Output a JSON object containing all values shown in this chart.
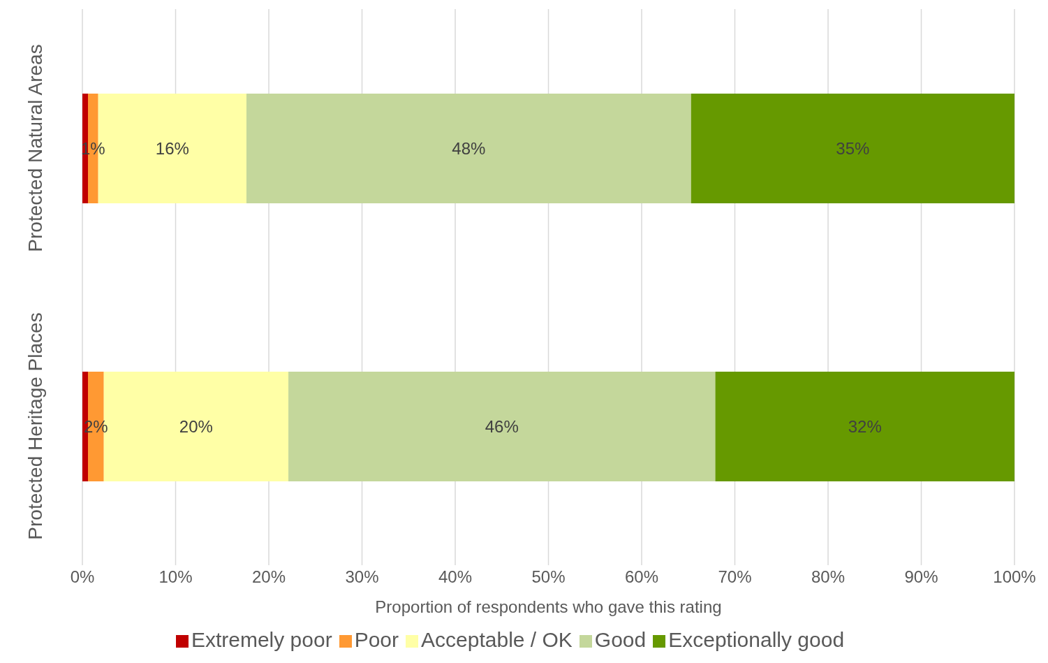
{
  "chart_data": {
    "type": "bar",
    "orientation": "horizontal",
    "stacked": true,
    "xlabel": "Proportion of respondents who gave this rating",
    "categories": [
      "Protected Natural Areas",
      "Protected Heritage Places"
    ],
    "series": [
      {
        "name": "Extremely poor",
        "color": "#c00000",
        "values": [
          0.6,
          0.6
        ],
        "value_labels": [
          null,
          null
        ]
      },
      {
        "name": "Poor",
        "color": "#ff9933",
        "values": [
          1.1,
          1.7
        ],
        "value_labels": [
          "1%",
          "2%"
        ]
      },
      {
        "name": "Acceptable / OK",
        "color": "#ffffa6",
        "values": [
          15.9,
          19.8
        ],
        "value_labels": [
          "16%",
          "20%"
        ]
      },
      {
        "name": "Good",
        "color": "#c4d79b",
        "values": [
          47.7,
          45.8
        ],
        "value_labels": [
          "48%",
          "46%"
        ]
      },
      {
        "name": "Exceptionally good",
        "color": "#669900",
        "values": [
          34.7,
          32.1
        ],
        "value_labels": [
          "35%",
          "32%"
        ]
      }
    ],
    "xlim": [
      0,
      100
    ],
    "xticks": [
      {
        "value": 0,
        "label": "0%"
      },
      {
        "value": 10,
        "label": "10%"
      },
      {
        "value": 20,
        "label": "20%"
      },
      {
        "value": 30,
        "label": "30%"
      },
      {
        "value": 40,
        "label": "40%"
      },
      {
        "value": 50,
        "label": "50%"
      },
      {
        "value": 60,
        "label": "60%"
      },
      {
        "value": 70,
        "label": "70%"
      },
      {
        "value": 80,
        "label": "80%"
      },
      {
        "value": 90,
        "label": "90%"
      },
      {
        "value": 100,
        "label": "100%"
      }
    ],
    "grid": "x",
    "legend": "bottom"
  }
}
